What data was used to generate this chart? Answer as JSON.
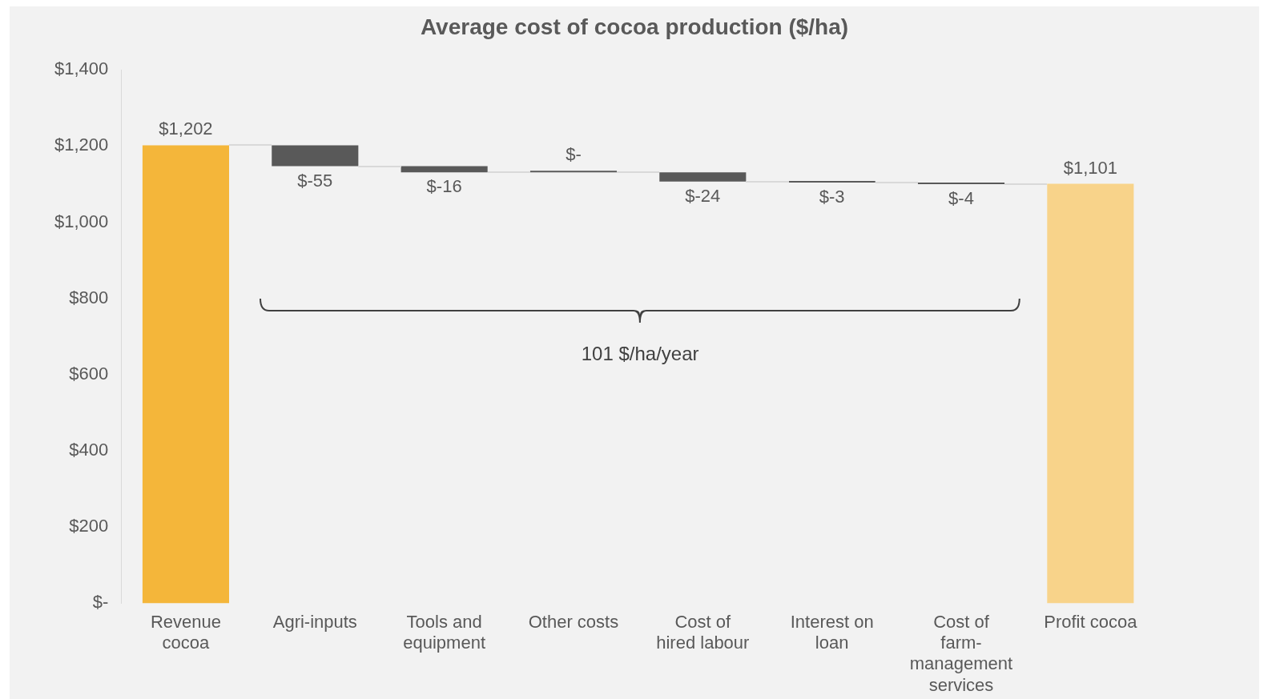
{
  "chart_data": {
    "type": "bar",
    "title": "Average cost of cocoa production ($/ha)",
    "categories": [
      "Revenue cocoa",
      "Agri-inputs",
      "Tools and equipment",
      "Other costs",
      "Cost of hired labour",
      "Interest on loan",
      "Cost of farm-management services",
      "Profit cocoa"
    ],
    "values": [
      1202,
      -55,
      -16,
      0,
      -24,
      -3,
      -4,
      1101
    ],
    "base": [
      0,
      1202,
      1147,
      1131,
      1131,
      1107,
      1104,
      0
    ],
    "colors": [
      "#f4b63a",
      "#595959",
      "#595959",
      "#595959",
      "#595959",
      "#595959",
      "#595959",
      "#f8d38a"
    ],
    "value_labels": [
      "$1,202",
      "$-55",
      "$-16",
      "$-",
      "$-24",
      "$-3",
      "$-4",
      "$1,101"
    ],
    "ylim": [
      0,
      1400
    ],
    "yticks": [
      {
        "value": 0,
        "label": "$-"
      },
      {
        "value": 200,
        "label": "$200"
      },
      {
        "value": 400,
        "label": "$400"
      },
      {
        "value": 600,
        "label": "$600"
      },
      {
        "value": 800,
        "label": "$800"
      },
      {
        "value": 1000,
        "label": "$1,000"
      },
      {
        "value": 1200,
        "label": "$1,200"
      },
      {
        "value": 1400,
        "label": "$1,400"
      }
    ],
    "annotations": [
      "101 $/ha/year"
    ],
    "grid": false,
    "legend": false
  }
}
